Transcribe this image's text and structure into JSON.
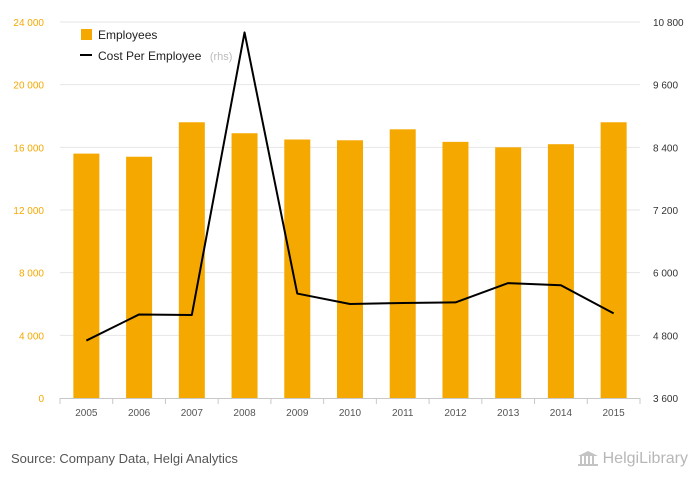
{
  "chart_data": {
    "type": "bar+line",
    "categories": [
      "2005",
      "2006",
      "2007",
      "2008",
      "2009",
      "2010",
      "2011",
      "2012",
      "2013",
      "2014",
      "2015"
    ],
    "series": [
      {
        "name": "Employees",
        "type": "bar",
        "axis": "left",
        "color": "#f5a800",
        "values": [
          15600,
          15400,
          17600,
          16900,
          16500,
          16450,
          17150,
          16350,
          16000,
          16200,
          17600
        ]
      },
      {
        "name": "Cost Per Employee",
        "type": "line",
        "axis": "right",
        "color": "#000000",
        "values": [
          4700,
          5200,
          5190,
          10600,
          5600,
          5400,
          5420,
          5430,
          5800,
          5760,
          5220
        ]
      }
    ],
    "legend_suffix": "(rhs)",
    "left_axis": {
      "min": 0,
      "max": 24000,
      "ticks": [
        "0",
        "4 000",
        "8 000",
        "12 000",
        "16 000",
        "20 000",
        "24 000"
      ]
    },
    "right_axis": {
      "min": 3600,
      "max": 10800,
      "ticks": [
        "3 600",
        "4 800",
        "6 000",
        "7 200",
        "8 400",
        "9 600",
        "10 800"
      ]
    },
    "grid": true,
    "legend_position": "top-left"
  },
  "footer": {
    "source": "Source: Company Data, Helgi Analytics",
    "brand": "HelgiLibrary"
  }
}
